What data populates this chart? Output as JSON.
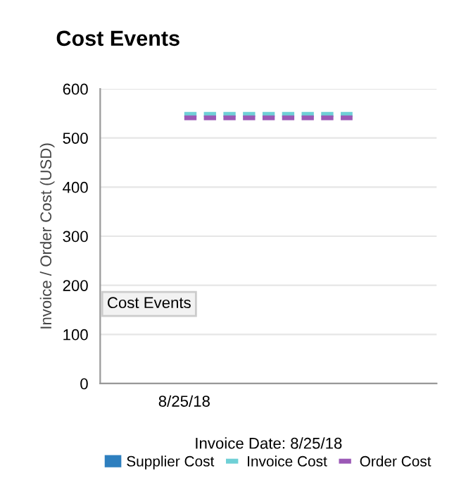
{
  "chart_data": {
    "type": "line",
    "title": "Cost Events",
    "xlabel": "Invoice Date: 8/25/18",
    "ylabel": "Invoice / Order Cost (USD)",
    "categories": [
      "8/25/18",
      null
    ],
    "series": [
      {
        "name": "Supplier Cost",
        "type": "bar",
        "color": "#2e7fbf",
        "values": [
          null,
          null
        ]
      },
      {
        "name": "Invoice Cost",
        "color": "#6fd0d6",
        "values": [
          548,
          548
        ]
      },
      {
        "name": "Order Cost",
        "color": "#9b59b6",
        "values": [
          541,
          541
        ]
      }
    ],
    "ylim": [
      0,
      600
    ],
    "yticks": [
      0,
      100,
      200,
      300,
      400,
      500,
      600
    ],
    "grid": "y",
    "legend": "bottom",
    "line_style": "dashed",
    "annotations": [
      "Cost Events"
    ]
  }
}
